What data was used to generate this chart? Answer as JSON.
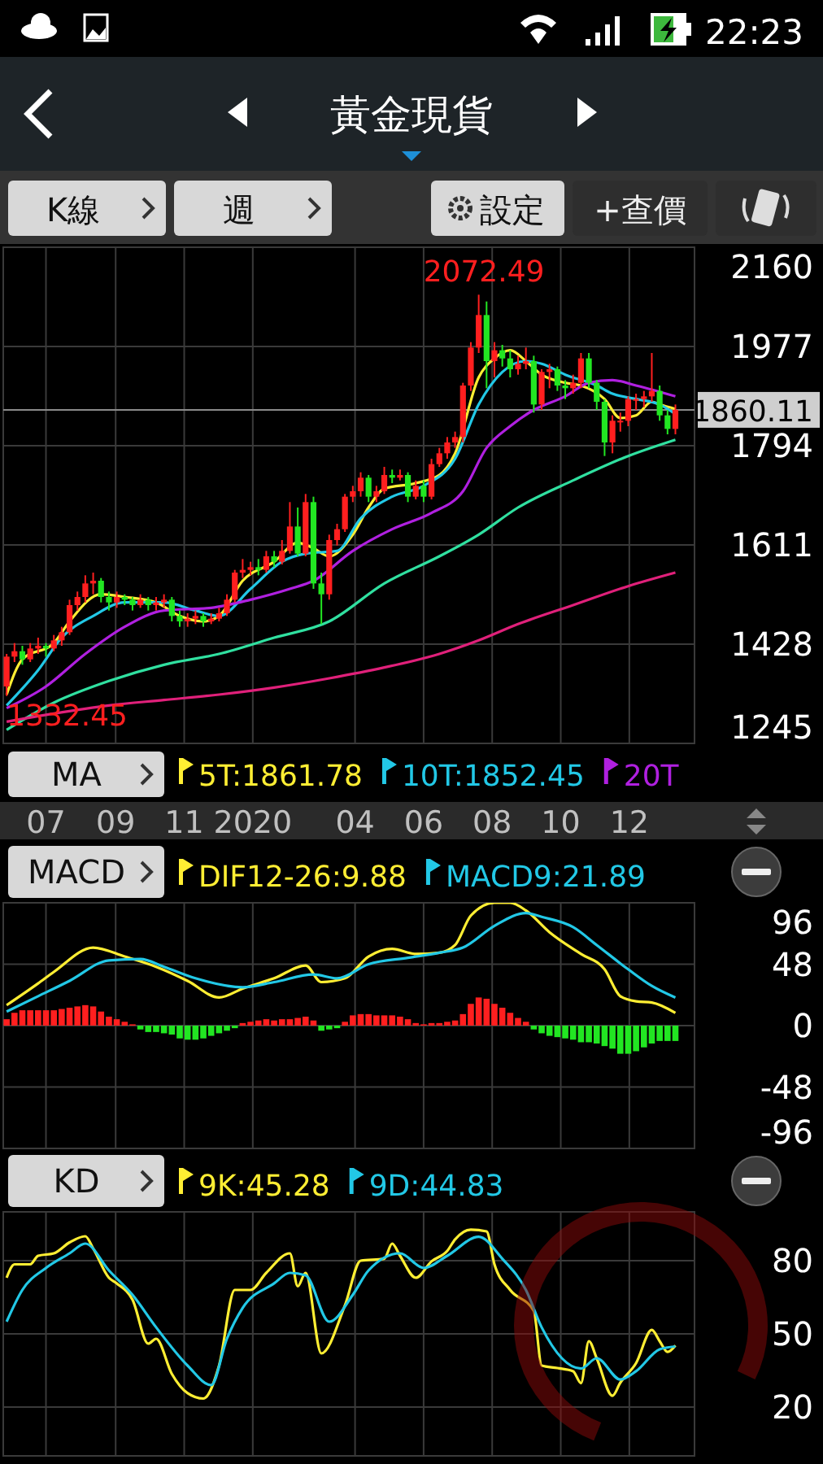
{
  "chart_data": [
    {
      "type": "candlestick",
      "title": "黃金現貨",
      "legend_title": "MA",
      "legend": "bottom",
      "grid": true,
      "annotations": [
        "22:23",
        "K線",
        "週",
        "設定",
        "+查價",
        {
          "text": "2072.49",
          "x": "2020-07-20",
          "y": 2072.49
        },
        {
          "text": "1332.45",
          "x": "2019-05-27",
          "y": 1332.45
        }
      ],
      "xlim": [
        "2019-05-24",
        "2021-01-28"
      ],
      "xticks": [
        {
          "value": "2019-07",
          "label": "07"
        },
        {
          "value": "2019-09",
          "label": "09"
        },
        {
          "value": "2019-11",
          "label": "11"
        },
        {
          "value": "2020-01",
          "label": "2020"
        },
        {
          "value": "2020-04",
          "label": "04"
        },
        {
          "value": "2020-06",
          "label": "06"
        },
        {
          "value": "2020-08",
          "label": "08"
        },
        {
          "value": "2020-10",
          "label": "10"
        },
        {
          "value": "2020-12",
          "label": "12"
        }
      ],
      "ylim": [
        1245,
        2160
      ],
      "yticks": [
        1245,
        1428,
        1611,
        1794,
        1977,
        2160
      ],
      "ref_lines": [
        {
          "axis": "y",
          "value": 1860.11,
          "label": "1860.11",
          "color": "#8a8a8a"
        }
      ],
      "x": [
        "2019-05-27",
        "2019-06-03",
        "2019-06-10",
        "2019-06-17",
        "2019-06-24",
        "2019-07-01",
        "2019-07-08",
        "2019-07-15",
        "2019-07-22",
        "2019-07-29",
        "2019-08-05",
        "2019-08-12",
        "2019-08-19",
        "2019-08-26",
        "2019-09-02",
        "2019-09-09",
        "2019-09-16",
        "2019-09-23",
        "2019-09-30",
        "2019-10-07",
        "2019-10-14",
        "2019-10-21",
        "2019-10-28",
        "2019-11-04",
        "2019-11-11",
        "2019-11-18",
        "2019-11-25",
        "2019-12-02",
        "2019-12-09",
        "2019-12-16",
        "2019-12-23",
        "2019-12-30",
        "2020-01-06",
        "2020-01-13",
        "2020-01-20",
        "2020-01-27",
        "2020-02-03",
        "2020-02-10",
        "2020-02-17",
        "2020-02-24",
        "2020-03-02",
        "2020-03-09",
        "2020-03-16",
        "2020-03-23",
        "2020-03-30",
        "2020-04-06",
        "2020-04-13",
        "2020-04-20",
        "2020-04-27",
        "2020-05-04",
        "2020-05-11",
        "2020-05-18",
        "2020-05-25",
        "2020-06-01",
        "2020-06-08",
        "2020-06-15",
        "2020-06-22",
        "2020-06-29",
        "2020-07-06",
        "2020-07-13",
        "2020-07-20",
        "2020-07-27",
        "2020-08-03",
        "2020-08-10",
        "2020-08-17",
        "2020-08-24",
        "2020-08-31",
        "2020-09-07",
        "2020-09-14",
        "2020-09-21",
        "2020-09-28",
        "2020-10-05",
        "2020-10-12",
        "2020-10-19",
        "2020-10-26",
        "2020-11-02",
        "2020-11-09",
        "2020-11-16",
        "2020-11-23",
        "2020-11-30",
        "2020-12-07",
        "2020-12-14",
        "2020-12-21",
        "2020-12-28",
        "2021-01-04",
        "2021-01-11"
      ],
      "colors": [
        "#ff1f1f",
        "#ff1f1f",
        "#22e622",
        "#ff1f1f",
        "#ff1f1f",
        "#22e622",
        "#ff1f1f",
        "#ff1f1f",
        "#ff1f1f",
        "#ff1f1f",
        "#ff1f1f",
        "#ff1f1f",
        "#22e622",
        "#22e622",
        "#ff1f1f",
        "#22e622",
        "#22e622",
        "#ff1f1f",
        "#22e622",
        "#ff1f1f",
        "#ff1f1f",
        "#22e622",
        "#22e622",
        "#ff1f1f",
        "#ff1f1f",
        "#22e622",
        "#ff1f1f",
        "#ff1f1f",
        "#ff1f1f",
        "#ff1f1f",
        "#ff1f1f",
        "#ff1f1f",
        "#22e622",
        "#ff1f1f",
        "#22e622",
        "#ff1f1f",
        "#ff1f1f",
        "#22e622",
        "#ff1f1f",
        "#22e622",
        "#22e622",
        "#ff1f1f",
        "#ff1f1f",
        "#ff1f1f",
        "#ff1f1f",
        "#ff1f1f",
        "#22e622",
        "#ff1f1f",
        "#ff1f1f",
        "#22e622",
        "#ff1f1f",
        "#22e622",
        "#ff1f1f",
        "#22e622",
        "#ff1f1f",
        "#ff1f1f",
        "#ff1f1f",
        "#ff1f1f",
        "#ff1f1f",
        "#ff1f1f",
        "#ff1f1f",
        "#22e622",
        "#ff1f1f",
        "#22e622",
        "#22e622",
        "#ff1f1f",
        "#ff1f1f",
        "#22e622",
        "#ff1f1f",
        "#ff1f1f",
        "#22e622",
        "#22e622",
        "#ff1f1f",
        "#ff1f1f",
        "#22e622",
        "#22e622",
        "#22e622",
        "#ff1f1f",
        "#ff1f1f",
        "#ff1f1f",
        "#ff1f1f",
        "#ff1f1f",
        "#ff1f1f",
        "#22e622",
        "#22e622",
        "#ff1f1f"
      ],
      "ohlc": [
        [
          1350,
          1410,
          1332.45,
          1405
        ],
        [
          1405,
          1430,
          1395,
          1415
        ],
        [
          1415,
          1425,
          1390,
          1400
        ],
        [
          1400,
          1430,
          1395,
          1420
        ],
        [
          1420,
          1440,
          1410,
          1425
        ],
        [
          1425,
          1430,
          1405,
          1420
        ],
        [
          1420,
          1445,
          1415,
          1435
        ],
        [
          1435,
          1460,
          1425,
          1450
        ],
        [
          1450,
          1510,
          1445,
          1500
        ],
        [
          1500,
          1525,
          1490,
          1515
        ],
        [
          1515,
          1555,
          1505,
          1540
        ],
        [
          1540,
          1560,
          1520,
          1545
        ],
        [
          1545,
          1550,
          1505,
          1515
        ],
        [
          1515,
          1525,
          1490,
          1505
        ],
        [
          1505,
          1525,
          1495,
          1515
        ],
        [
          1515,
          1520,
          1500,
          1510
        ],
        [
          1510,
          1515,
          1490,
          1500
        ],
        [
          1500,
          1520,
          1495,
          1510
        ],
        [
          1510,
          1515,
          1490,
          1500
        ],
        [
          1500,
          1515,
          1490,
          1505
        ],
        [
          1505,
          1520,
          1495,
          1510
        ],
        [
          1510,
          1515,
          1470,
          1480
        ],
        [
          1480,
          1490,
          1460,
          1470
        ],
        [
          1470,
          1485,
          1460,
          1475
        ],
        [
          1475,
          1490,
          1465,
          1480
        ],
        [
          1480,
          1485,
          1460,
          1470
        ],
        [
          1470,
          1485,
          1465,
          1475
        ],
        [
          1475,
          1495,
          1470,
          1485
        ],
        [
          1485,
          1520,
          1480,
          1510
        ],
        [
          1510,
          1565,
          1505,
          1560
        ],
        [
          1560,
          1585,
          1550,
          1565
        ],
        [
          1565,
          1580,
          1555,
          1570
        ],
        [
          1570,
          1585,
          1555,
          1565
        ],
        [
          1565,
          1600,
          1560,
          1590
        ],
        [
          1590,
          1600,
          1570,
          1580
        ],
        [
          1580,
          1620,
          1575,
          1600
        ],
        [
          1600,
          1690,
          1595,
          1645
        ],
        [
          1645,
          1680,
          1590,
          1595
        ],
        [
          1595,
          1705,
          1590,
          1690
        ],
        [
          1690,
          1700,
          1530,
          1540
        ],
        [
          1540,
          1560,
          1465,
          1520
        ],
        [
          1520,
          1630,
          1510,
          1620
        ],
        [
          1620,
          1650,
          1610,
          1640
        ],
        [
          1640,
          1705,
          1635,
          1700
        ],
        [
          1700,
          1720,
          1690,
          1710
        ],
        [
          1710,
          1745,
          1700,
          1735
        ],
        [
          1735,
          1740,
          1690,
          1700
        ],
        [
          1700,
          1720,
          1690,
          1710
        ],
        [
          1710,
          1755,
          1705,
          1740
        ],
        [
          1740,
          1750,
          1725,
          1735
        ],
        [
          1735,
          1750,
          1730,
          1740
        ],
        [
          1740,
          1745,
          1690,
          1700
        ],
        [
          1700,
          1730,
          1695,
          1720
        ],
        [
          1720,
          1730,
          1690,
          1700
        ],
        [
          1700,
          1770,
          1695,
          1760
        ],
        [
          1760,
          1790,
          1755,
          1780
        ],
        [
          1780,
          1810,
          1770,
          1800
        ],
        [
          1800,
          1820,
          1790,
          1810
        ],
        [
          1810,
          1910,
          1800,
          1905
        ],
        [
          1905,
          1985,
          1895,
          1975
        ],
        [
          1975,
          2072.49,
          1965,
          2035
        ],
        [
          2035,
          2060,
          1900,
          1950
        ],
        [
          1950,
          1985,
          1920,
          1970
        ],
        [
          1970,
          1980,
          1940,
          1955
        ],
        [
          1955,
          1970,
          1920,
          1935
        ],
        [
          1935,
          1960,
          1925,
          1945
        ],
        [
          1945,
          1975,
          1935,
          1950
        ],
        [
          1950,
          1960,
          1855,
          1870
        ],
        [
          1870,
          1935,
          1860,
          1930
        ],
        [
          1930,
          1945,
          1900,
          1935
        ],
        [
          1935,
          1940,
          1895,
          1905
        ],
        [
          1905,
          1915,
          1880,
          1900
        ],
        [
          1900,
          1925,
          1890,
          1910
        ],
        [
          1910,
          1965,
          1900,
          1955
        ],
        [
          1955,
          1965,
          1900,
          1910
        ],
        [
          1910,
          1915,
          1860,
          1875
        ],
        [
          1875,
          1880,
          1775,
          1800
        ],
        [
          1800,
          1850,
          1780,
          1840
        ],
        [
          1840,
          1855,
          1820,
          1840
        ],
        [
          1840,
          1885,
          1830,
          1880
        ],
        [
          1880,
          1890,
          1860,
          1880
        ],
        [
          1880,
          1895,
          1865,
          1885
        ],
        [
          1885,
          1965,
          1875,
          1895
        ],
        [
          1895,
          1905,
          1840,
          1850
        ],
        [
          1850,
          1860,
          1815,
          1825
        ],
        [
          1825,
          1870,
          1815,
          1860.11
        ]
      ],
      "series": [
        {
          "type": "line",
          "name": "5T:1861.78",
          "color": "#ffee33",
          "x": [
            "2019-05-27",
            "2019-06-10",
            "2019-07-08",
            "2019-07-22",
            "2019-08-19",
            "2019-09-09",
            "2019-10-07",
            "2019-10-28",
            "2019-11-18",
            "2019-12-02",
            "2019-12-23",
            "2020-01-20",
            "2020-02-10",
            "2020-02-24",
            "2020-03-09",
            "2020-03-30",
            "2020-04-13",
            "2020-04-27",
            "2020-05-25",
            "2020-06-15",
            "2020-06-29",
            "2020-07-20",
            "2020-08-03",
            "2020-08-17",
            "2020-08-31",
            "2020-09-14",
            "2020-10-05",
            "2020-10-19",
            "2020-11-09",
            "2020-11-23",
            "2020-12-07",
            "2020-12-21",
            "2020-12-28",
            "2021-01-11"
          ],
          "values": [
            1335,
            1400,
            1430,
            1470,
            1520,
            1515,
            1505,
            1480,
            1470,
            1480,
            1545,
            1580,
            1615,
            1605,
            1590,
            1630,
            1680,
            1715,
            1725,
            1740,
            1780,
            1920,
            1955,
            1970,
            1950,
            1925,
            1910,
            1905,
            1880,
            1845,
            1850,
            1875,
            1870,
            1861.78
          ]
        },
        {
          "type": "line",
          "name": "10T:1852.45",
          "color": "#22c8e6",
          "x": [
            "2019-05-27",
            "2019-06-24",
            "2019-07-15",
            "2019-08-12",
            "2019-09-09",
            "2019-10-14",
            "2019-11-11",
            "2019-12-02",
            "2019-12-30",
            "2020-01-27",
            "2020-02-17",
            "2020-03-16",
            "2020-04-06",
            "2020-05-04",
            "2020-06-01",
            "2020-06-29",
            "2020-07-20",
            "2020-08-10",
            "2020-08-31",
            "2020-09-14",
            "2020-10-05",
            "2020-11-02",
            "2020-11-16",
            "2020-12-07",
            "2020-12-28",
            "2021-01-11"
          ],
          "values": [
            1315,
            1380,
            1440,
            1480,
            1505,
            1505,
            1490,
            1480,
            1530,
            1580,
            1595,
            1600,
            1660,
            1700,
            1720,
            1770,
            1870,
            1930,
            1950,
            1945,
            1925,
            1905,
            1890,
            1880,
            1870,
            1852.45
          ]
        },
        {
          "type": "line",
          "name": "20T",
          "color": "#b020e0",
          "x": [
            "2019-05-27",
            "2019-07-01",
            "2019-08-05",
            "2019-09-09",
            "2019-10-14",
            "2019-11-25",
            "2019-12-30",
            "2020-02-03",
            "2020-02-24",
            "2020-03-30",
            "2020-05-04",
            "2020-06-08",
            "2020-07-06",
            "2020-07-27",
            "2020-08-17",
            "2020-09-07",
            "2020-10-05",
            "2020-10-26",
            "2020-11-16",
            "2020-12-07",
            "2021-01-11"
          ],
          "values": [
            1310,
            1350,
            1410,
            1460,
            1490,
            1495,
            1510,
            1530,
            1545,
            1600,
            1640,
            1670,
            1710,
            1790,
            1830,
            1860,
            1885,
            1910,
            1915,
            1905,
            1885
          ]
        },
        {
          "type": "line",
          "color": "#30e0a0",
          "x": [
            "2019-05-27",
            "2019-07-08",
            "2019-08-26",
            "2019-10-14",
            "2019-12-02",
            "2020-01-20",
            "2020-03-09",
            "2020-04-27",
            "2020-06-15",
            "2020-07-20",
            "2020-08-24",
            "2020-10-12",
            "2020-11-30",
            "2021-01-11"
          ],
          "values": [
            1270,
            1320,
            1360,
            1390,
            1410,
            1440,
            1470,
            1540,
            1590,
            1630,
            1680,
            1730,
            1775,
            1805
          ]
        },
        {
          "type": "line",
          "color": "#e0207a",
          "x": [
            "2019-05-27",
            "2019-07-08",
            "2019-08-26",
            "2019-10-14",
            "2019-12-02",
            "2020-01-20",
            "2020-03-09",
            "2020-04-27",
            "2020-06-15",
            "2020-07-20",
            "2020-08-24",
            "2020-10-12",
            "2020-11-30",
            "2021-01-11"
          ],
          "values": [
            1285,
            1300,
            1315,
            1325,
            1335,
            1348,
            1365,
            1385,
            1410,
            1435,
            1465,
            1500,
            1535,
            1560
          ]
        }
      ]
    },
    {
      "type": "bar",
      "legend_title": "MACD",
      "legend": "top",
      "grid": true,
      "tick_labels": "y",
      "xlim": [
        "2019-05-24",
        "2021-01-28"
      ],
      "xticks": [
        {
          "value": "2019-07",
          "label": null
        },
        {
          "value": "2019-09",
          "label": null
        },
        {
          "value": "2019-11",
          "label": null
        },
        {
          "value": "2020-01",
          "label": null
        },
        {
          "value": "2020-04",
          "label": null
        },
        {
          "value": "2020-06",
          "label": null
        },
        {
          "value": "2020-08",
          "label": null
        },
        {
          "value": "2020-10",
          "label": null
        },
        {
          "value": "2020-12",
          "label": null
        }
      ],
      "ylim": [
        -96,
        96
      ],
      "yticks": [
        -96,
        -48,
        0,
        48,
        96
      ],
      "x": [
        "2019-05-27",
        "2019-06-03",
        "2019-06-10",
        "2019-06-17",
        "2019-06-24",
        "2019-07-01",
        "2019-07-08",
        "2019-07-15",
        "2019-07-22",
        "2019-07-29",
        "2019-08-05",
        "2019-08-12",
        "2019-08-19",
        "2019-08-26",
        "2019-09-02",
        "2019-09-09",
        "2019-09-16",
        "2019-09-23",
        "2019-09-30",
        "2019-10-07",
        "2019-10-14",
        "2019-10-21",
        "2019-10-28",
        "2019-11-04",
        "2019-11-11",
        "2019-11-18",
        "2019-11-25",
        "2019-12-02",
        "2019-12-09",
        "2019-12-16",
        "2019-12-23",
        "2019-12-30",
        "2020-01-06",
        "2020-01-13",
        "2020-01-20",
        "2020-01-27",
        "2020-02-03",
        "2020-02-10",
        "2020-02-17",
        "2020-02-24",
        "2020-03-02",
        "2020-03-09",
        "2020-03-16",
        "2020-03-23",
        "2020-03-30",
        "2020-04-06",
        "2020-04-13",
        "2020-04-20",
        "2020-04-27",
        "2020-05-04",
        "2020-05-11",
        "2020-05-18",
        "2020-05-25",
        "2020-06-01",
        "2020-06-08",
        "2020-06-15",
        "2020-06-22",
        "2020-06-29",
        "2020-07-06",
        "2020-07-13",
        "2020-07-20",
        "2020-07-27",
        "2020-08-03",
        "2020-08-10",
        "2020-08-17",
        "2020-08-24",
        "2020-08-31",
        "2020-09-07",
        "2020-09-14",
        "2020-09-21",
        "2020-09-28",
        "2020-10-05",
        "2020-10-12",
        "2020-10-19",
        "2020-10-26",
        "2020-11-02",
        "2020-11-09",
        "2020-11-16",
        "2020-11-23",
        "2020-11-30",
        "2020-12-07",
        "2020-12-14",
        "2020-12-21",
        "2020-12-28",
        "2021-01-04",
        "2021-01-11"
      ],
      "values": [
        5,
        10,
        12,
        12,
        12,
        12,
        12,
        13,
        14,
        15,
        16,
        15,
        11,
        7,
        5,
        3,
        1,
        -3,
        -5,
        -5,
        -6,
        -7,
        -10,
        -11,
        -11,
        -10,
        -8,
        -6,
        -4,
        -2,
        2,
        3,
        4,
        5,
        4,
        5,
        5,
        6,
        7,
        4,
        -4,
        -3,
        -2,
        3,
        8,
        9,
        9,
        8,
        8,
        8,
        7,
        5,
        2,
        1,
        2,
        2,
        3,
        4,
        9,
        17,
        22,
        21,
        17,
        14,
        10,
        6,
        3,
        -3,
        -6,
        -8,
        -9,
        -10,
        -11,
        -13,
        -13,
        -14,
        -16,
        -18,
        -22,
        -22,
        -20,
        -17,
        -14,
        -12,
        -12,
        -12
      ],
      "colors": [
        "#ff1f1f",
        "#ff1f1f",
        "#ff1f1f",
        "#ff1f1f",
        "#ff1f1f",
        "#ff1f1f",
        "#ff1f1f",
        "#ff1f1f",
        "#ff1f1f",
        "#ff1f1f",
        "#ff1f1f",
        "#ff1f1f",
        "#ff1f1f",
        "#ff1f1f",
        "#ff1f1f",
        "#ff1f1f",
        "#ff1f1f",
        "#22e622",
        "#22e622",
        "#22e622",
        "#22e622",
        "#22e622",
        "#22e622",
        "#22e622",
        "#22e622",
        "#22e622",
        "#22e622",
        "#22e622",
        "#22e622",
        "#22e622",
        "#ff1f1f",
        "#ff1f1f",
        "#ff1f1f",
        "#ff1f1f",
        "#ff1f1f",
        "#ff1f1f",
        "#ff1f1f",
        "#ff1f1f",
        "#ff1f1f",
        "#ff1f1f",
        "#22e622",
        "#22e622",
        "#22e622",
        "#ff1f1f",
        "#ff1f1f",
        "#ff1f1f",
        "#ff1f1f",
        "#ff1f1f",
        "#ff1f1f",
        "#ff1f1f",
        "#ff1f1f",
        "#ff1f1f",
        "#ff1f1f",
        "#ff1f1f",
        "#ff1f1f",
        "#ff1f1f",
        "#ff1f1f",
        "#ff1f1f",
        "#ff1f1f",
        "#ff1f1f",
        "#ff1f1f",
        "#ff1f1f",
        "#ff1f1f",
        "#ff1f1f",
        "#ff1f1f",
        "#ff1f1f",
        "#ff1f1f",
        "#22e622",
        "#22e622",
        "#22e622",
        "#22e622",
        "#22e622",
        "#22e622",
        "#22e622",
        "#22e622",
        "#22e622",
        "#22e622",
        "#22e622",
        "#22e622",
        "#22e622",
        "#22e622",
        "#22e622",
        "#22e622",
        "#22e622",
        "#22e622",
        "#22e622"
      ],
      "series": [
        {
          "type": "line",
          "name": "DIF12-26:9.88",
          "color": "#ffee33",
          "x": [
            "2019-05-27",
            "2019-06-24",
            "2019-07-08",
            "2019-08-12",
            "2019-09-09",
            "2019-10-07",
            "2019-11-04",
            "2019-12-02",
            "2019-12-23",
            "2020-01-20",
            "2020-02-17",
            "2020-03-02",
            "2020-03-23",
            "2020-04-13",
            "2020-05-04",
            "2020-05-25",
            "2020-06-15",
            "2020-06-29",
            "2020-07-13",
            "2020-08-03",
            "2020-08-17",
            "2020-08-31",
            "2020-09-21",
            "2020-10-19",
            "2020-11-09",
            "2020-11-23",
            "2020-12-07",
            "2020-12-21",
            "2021-01-11"
          ],
          "values": [
            16,
            33,
            42,
            61,
            54,
            46,
            35,
            22,
            29,
            37,
            47,
            34,
            37,
            54,
            60,
            56,
            57,
            63,
            86,
            96,
            96,
            90,
            73,
            56,
            44,
            23,
            19,
            18,
            9.88
          ]
        },
        {
          "type": "line",
          "name": "MACD9:21.89",
          "color": "#22c8e6",
          "x": [
            "2019-05-27",
            "2019-06-24",
            "2019-07-22",
            "2019-08-26",
            "2019-09-23",
            "2019-10-14",
            "2019-11-11",
            "2019-12-23",
            "2020-01-20",
            "2020-02-24",
            "2020-03-16",
            "2020-04-13",
            "2020-05-18",
            "2020-06-15",
            "2020-07-06",
            "2020-08-03",
            "2020-08-31",
            "2020-09-14",
            "2020-10-12",
            "2020-11-02",
            "2020-11-30",
            "2020-12-21",
            "2021-01-11"
          ],
          "values": [
            11,
            23,
            35,
            51,
            52,
            46,
            37,
            30,
            34,
            40,
            37,
            48,
            53,
            57,
            61,
            78,
            88,
            85,
            77,
            63,
            44,
            31,
            21.89
          ]
        }
      ]
    },
    {
      "type": "line",
      "legend_title": "KD",
      "legend": "top",
      "grid": true,
      "tick_labels": "y",
      "xlim": [
        "2019-05-24",
        "2021-01-28"
      ],
      "xticks": [
        {
          "value": "2019-07",
          "label": null
        },
        {
          "value": "2019-09",
          "label": null
        },
        {
          "value": "2019-11",
          "label": null
        },
        {
          "value": "2020-01",
          "label": null
        },
        {
          "value": "2020-04",
          "label": null
        },
        {
          "value": "2020-06",
          "label": null
        },
        {
          "value": "2020-08",
          "label": null
        },
        {
          "value": "2020-10",
          "label": null
        },
        {
          "value": "2020-12",
          "label": null
        }
      ],
      "ylim": [
        0,
        100
      ],
      "yticks": [
        20,
        50,
        80
      ],
      "series": [
        {
          "name": "9K:45.28",
          "color": "#ffee33",
          "x": [
            "2019-05-27",
            "2019-06-03",
            "2019-06-17",
            "2019-06-24",
            "2019-07-08",
            "2019-07-22",
            "2019-08-05",
            "2019-08-12",
            "2019-08-26",
            "2019-09-02",
            "2019-09-16",
            "2019-09-30",
            "2019-10-07",
            "2019-10-21",
            "2019-11-04",
            "2019-11-18",
            "2019-12-02",
            "2019-12-16",
            "2019-12-30",
            "2020-01-13",
            "2020-02-03",
            "2020-02-10",
            "2020-02-17",
            "2020-03-02",
            "2020-03-23",
            "2020-04-06",
            "2020-04-27",
            "2020-05-04",
            "2020-05-11",
            "2020-05-25",
            "2020-06-08",
            "2020-06-22",
            "2020-06-29",
            "2020-07-13",
            "2020-07-27",
            "2020-08-03",
            "2020-08-17",
            "2020-09-07",
            "2020-09-14",
            "2020-09-28",
            "2020-10-12",
            "2020-10-19",
            "2020-10-26",
            "2020-11-02",
            "2020-11-16",
            "2020-11-23",
            "2020-12-07",
            "2020-12-21",
            "2020-12-28",
            "2021-01-04",
            "2021-01-11"
          ],
          "values": [
            73,
            78.5,
            78.5,
            82,
            83,
            87.5,
            90,
            85,
            73,
            70.7,
            64,
            46,
            48,
            33.6,
            25.7,
            23.5,
            37,
            68,
            68,
            75,
            83,
            69.5,
            75,
            42,
            61.7,
            80,
            80.8,
            87,
            82,
            73,
            79.7,
            84,
            88.7,
            92.7,
            92,
            78.5,
            68,
            59.4,
            37,
            36,
            34.7,
            29.8,
            47,
            40,
            24.6,
            30,
            38,
            51.6,
            47,
            42.6,
            45.28
          ]
        },
        {
          "name": "9D:44.83",
          "color": "#22c8e6",
          "x": [
            "2019-05-27",
            "2019-06-10",
            "2019-07-01",
            "2019-07-22",
            "2019-08-05",
            "2019-08-26",
            "2019-09-16",
            "2019-10-07",
            "2019-11-04",
            "2019-11-25",
            "2019-12-09",
            "2019-12-23",
            "2020-01-20",
            "2020-02-03",
            "2020-02-17",
            "2020-03-09",
            "2020-03-30",
            "2020-04-13",
            "2020-05-11",
            "2020-06-01",
            "2020-06-22",
            "2020-07-20",
            "2020-08-10",
            "2020-08-31",
            "2020-09-14",
            "2020-10-19",
            "2020-11-02",
            "2020-11-23",
            "2020-12-07",
            "2020-12-28",
            "2021-01-11"
          ],
          "values": [
            55,
            68,
            77,
            83,
            87,
            76,
            66,
            52.7,
            37,
            29,
            48,
            60.6,
            70.7,
            75,
            74,
            55,
            66,
            76,
            83,
            77,
            82,
            89.8,
            80.8,
            68,
            52.7,
            35.8,
            40,
            31.3,
            34.7,
            43.7,
            44.83
          ]
        }
      ]
    }
  ]
}
